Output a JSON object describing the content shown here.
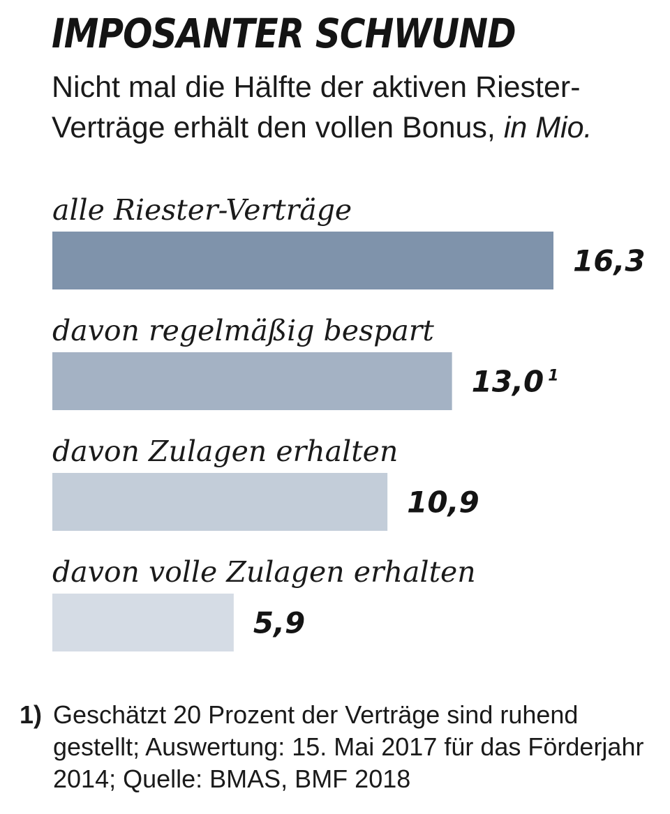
{
  "header": {
    "title": "IMPOSANTER SCHWUND",
    "subtitle": "Nicht mal die Hälfte der aktiven Riester-Verträge erhält den vollen Bonus,",
    "unit": "in Mio."
  },
  "chart_data": {
    "type": "bar",
    "orientation": "horizontal",
    "categories": [
      "alle Riester-Verträge",
      "davon regelmäßig bespart",
      "davon Zulagen erhalten",
      "davon volle Zulagen erhalten"
    ],
    "values": [
      16.3,
      13.0,
      10.9,
      5.9
    ],
    "value_labels": [
      "16,3",
      "13,0",
      "10,9",
      "5,9"
    ],
    "footnote_refs": [
      "",
      "1",
      "",
      ""
    ],
    "colors": [
      "#7f93ab",
      "#a4b2c4",
      "#c3cdd9",
      "#d5dce5"
    ],
    "title": "IMPOSANTER SCHWUND",
    "xlabel": "",
    "ylabel": "",
    "xlim": [
      0,
      16.3
    ],
    "grid": false,
    "legend": "none"
  },
  "footnote": {
    "marker": "1)",
    "text": "Geschätzt 20 Prozent der Verträge sind ruhend gestellt; Auswertung: 15. Mai 2017 für das Förderjahr 2014; Quelle: BMAS, BMF 2018"
  }
}
